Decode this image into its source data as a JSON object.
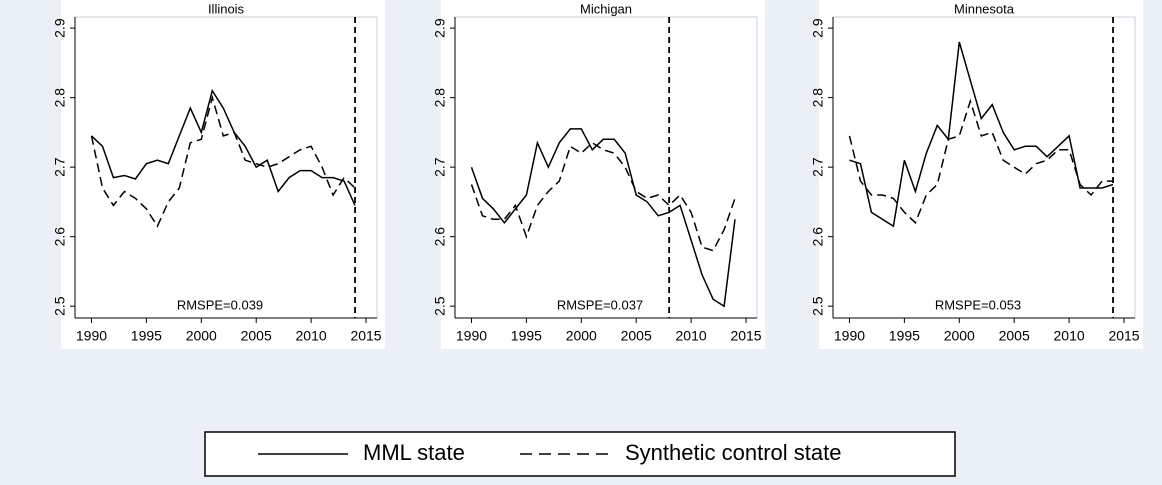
{
  "chart_data": [
    {
      "type": "line",
      "title": "Illinois",
      "annotation": "RMSPE=0.039",
      "vline": 2014,
      "x": [
        1990,
        1991,
        1992,
        1993,
        1994,
        1995,
        1996,
        1997,
        1998,
        1999,
        2000,
        2001,
        2002,
        2003,
        2004,
        2005,
        2006,
        2007,
        2008,
        2009,
        2010,
        2011,
        2012,
        2013,
        2014
      ],
      "series": [
        {
          "name": "MML state",
          "color": "#000000",
          "dash": false,
          "values": [
            2.745,
            2.73,
            2.685,
            2.688,
            2.683,
            2.705,
            2.71,
            2.705,
            2.745,
            2.785,
            2.75,
            2.81,
            2.785,
            2.75,
            2.73,
            2.7,
            2.71,
            2.665,
            2.685,
            2.695,
            2.695,
            2.685,
            2.685,
            2.68,
            2.645
          ]
        },
        {
          "name": "Synthetic control state",
          "color": "#000000",
          "dash": true,
          "values": [
            2.745,
            2.67,
            2.645,
            2.665,
            2.655,
            2.64,
            2.615,
            2.65,
            2.67,
            2.735,
            2.74,
            2.8,
            2.745,
            2.75,
            2.71,
            2.705,
            2.7,
            2.705,
            2.715,
            2.725,
            2.73,
            2.7,
            2.66,
            2.685,
            2.67
          ]
        }
      ],
      "xlim": [
        1988.5,
        2016
      ],
      "xticks": [
        1990,
        1995,
        2000,
        2005,
        2010,
        2015
      ],
      "ylim": [
        2.483,
        2.916
      ],
      "yticks": [
        2.5,
        2.6,
        2.7,
        2.8,
        2.9
      ]
    },
    {
      "type": "line",
      "title": "Michigan",
      "annotation": "RMSPE=0.037",
      "vline": 2008,
      "x": [
        1990,
        1991,
        1992,
        1993,
        1994,
        1995,
        1996,
        1997,
        1998,
        1999,
        2000,
        2001,
        2002,
        2003,
        2004,
        2005,
        2006,
        2007,
        2008,
        2009,
        2010,
        2011,
        2012,
        2013,
        2014
      ],
      "series": [
        {
          "color": "#000000",
          "dash": false,
          "values": [
            2.7,
            2.655,
            2.64,
            2.62,
            2.64,
            2.66,
            2.735,
            2.7,
            2.735,
            2.755,
            2.755,
            2.725,
            2.74,
            2.74,
            2.72,
            2.66,
            2.65,
            2.63,
            2.635,
            2.645,
            2.595,
            2.545,
            2.51,
            2.5,
            2.625
          ]
        },
        {
          "color": "#000000",
          "dash": true,
          "values": [
            2.675,
            2.63,
            2.625,
            2.625,
            2.645,
            2.6,
            2.645,
            2.665,
            2.68,
            2.73,
            2.72,
            2.735,
            2.725,
            2.72,
            2.7,
            2.665,
            2.655,
            2.66,
            2.645,
            2.66,
            2.635,
            2.585,
            2.58,
            2.61,
            2.655
          ]
        }
      ],
      "xlim": [
        1988.5,
        2016
      ],
      "xticks": [
        1990,
        1995,
        2000,
        2005,
        2010,
        2015
      ],
      "ylim": [
        2.483,
        2.916
      ],
      "yticks": [
        2.5,
        2.6,
        2.7,
        2.8,
        2.9
      ]
    },
    {
      "type": "line",
      "title": "Minnesota",
      "annotation": "RMSPE=0.053",
      "vline": 2014,
      "x": [
        1990,
        1991,
        1992,
        1993,
        1994,
        1995,
        1996,
        1997,
        1998,
        1999,
        2000,
        2001,
        2002,
        2003,
        2004,
        2005,
        2006,
        2007,
        2008,
        2009,
        2010,
        2011,
        2012,
        2013,
        2014
      ],
      "series": [
        {
          "color": "#000000",
          "dash": false,
          "values": [
            2.71,
            2.705,
            2.635,
            2.625,
            2.615,
            2.71,
            2.665,
            2.72,
            2.76,
            2.74,
            2.88,
            2.825,
            2.77,
            2.79,
            2.75,
            2.725,
            2.73,
            2.73,
            2.715,
            2.73,
            2.745,
            2.67,
            2.67,
            2.67,
            2.675
          ]
        },
        {
          "color": "#000000",
          "dash": true,
          "values": [
            2.745,
            2.68,
            2.66,
            2.66,
            2.655,
            2.635,
            2.62,
            2.66,
            2.675,
            2.74,
            2.745,
            2.795,
            2.745,
            2.75,
            2.71,
            2.7,
            2.69,
            2.705,
            2.71,
            2.725,
            2.725,
            2.675,
            2.66,
            2.68,
            2.68
          ]
        }
      ],
      "xlim": [
        1988.5,
        2016
      ],
      "xticks": [
        1990,
        1995,
        2000,
        2005,
        2010,
        2015
      ],
      "ylim": [
        2.483,
        2.916
      ],
      "yticks": [
        2.5,
        2.6,
        2.7,
        2.8,
        2.9
      ]
    }
  ]
}
